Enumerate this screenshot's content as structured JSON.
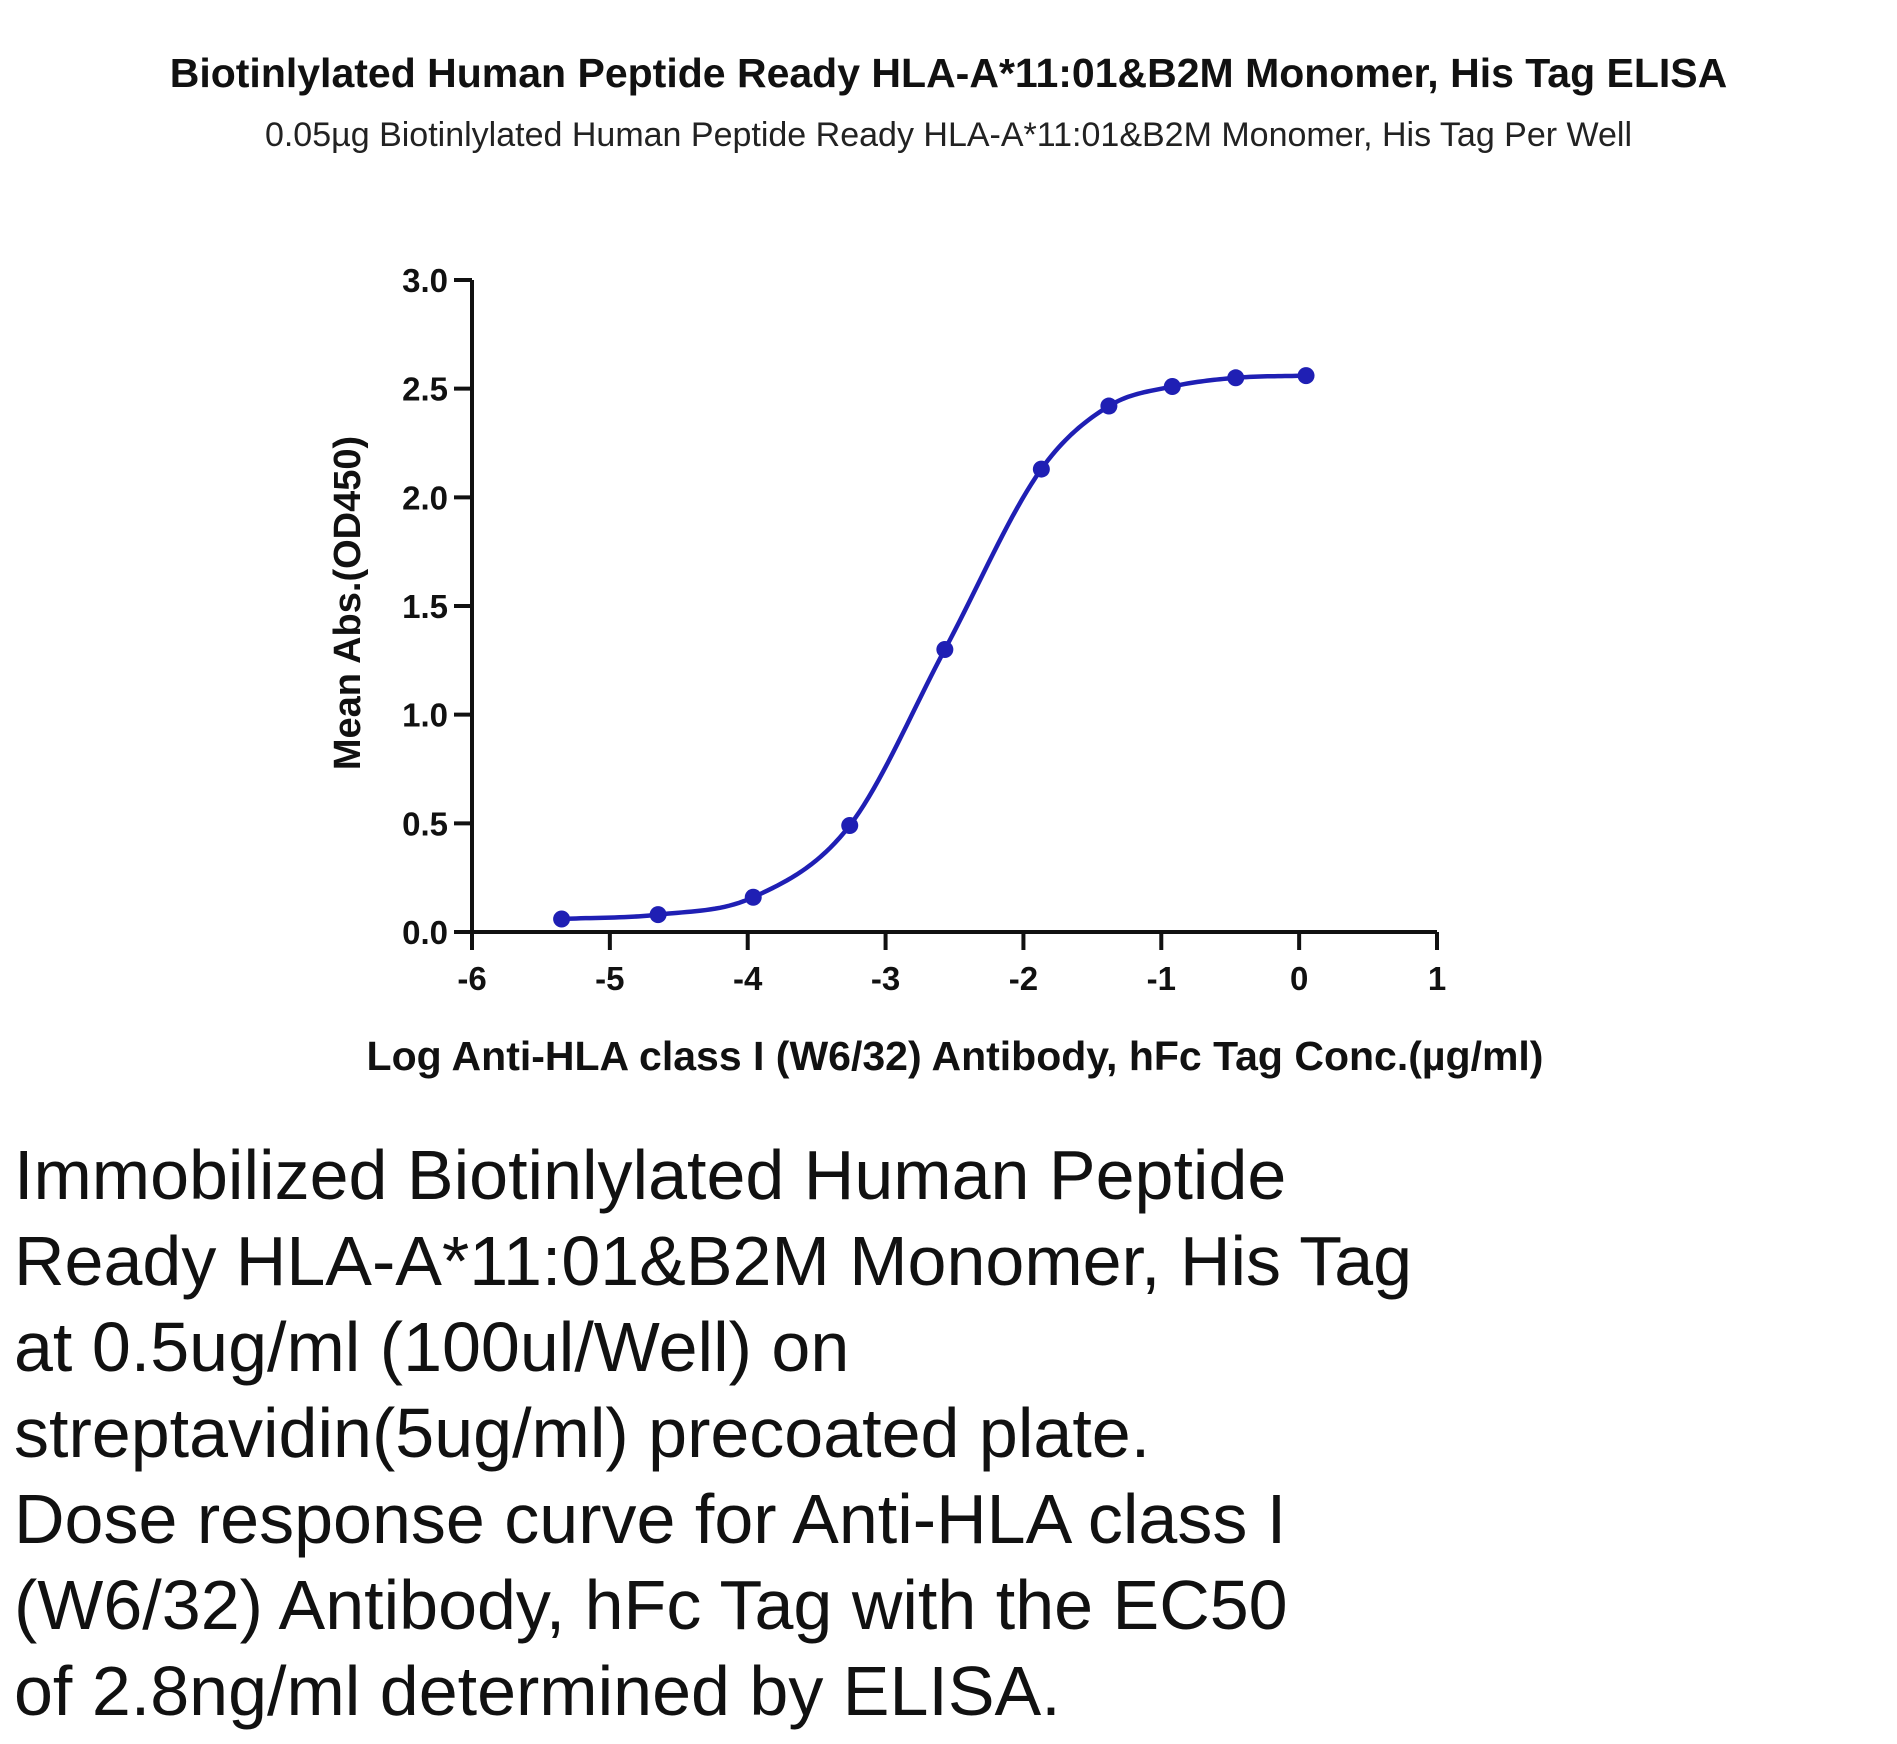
{
  "title": "Biotinlylated Human Peptide Ready HLA-A*11:01&B2M Monomer, His Tag ELISA",
  "subtitle": "0.05µg Biotinlylated Human Peptide Ready HLA-A*11:01&B2M Monomer, His Tag Per Well",
  "chart_data": {
    "type": "scatter",
    "xlabel": "Log Anti-HLA class I (W6/32) Antibody, hFc Tag Conc.(µg/ml)",
    "ylabel": "Mean Abs.(OD450)",
    "xlim": [
      -6,
      1
    ],
    "ylim": [
      0,
      3.0
    ],
    "x_ticks": [
      "-6",
      "-5",
      "-4",
      "-3",
      "-2",
      "-1",
      "0",
      "1"
    ],
    "y_ticks": [
      "0.0",
      "0.5",
      "1.0",
      "1.5",
      "2.0",
      "2.5",
      "3.0"
    ],
    "grid": false,
    "series": [
      {
        "color": "#1f1fb4",
        "x": [
          -5.35,
          -4.65,
          -3.96,
          -3.26,
          -2.57,
          -1.87,
          -1.38,
          -0.92,
          -0.46,
          0.05
        ],
        "y": [
          0.06,
          0.08,
          0.16,
          0.49,
          1.3,
          2.13,
          2.42,
          2.51,
          2.55,
          2.56
        ],
        "fit_curve": "four-parameter logistic"
      }
    ]
  },
  "caption_lines": [
    "Immobilized Biotinlylated Human Peptide",
    "Ready HLA-A*11:01&B2M Monomer, His Tag",
    "at 0.5ug/ml (100ul/Well) on",
    "streptavidin(5ug/ml) precoated plate.",
    "Dose response curve for Anti-HLA class I",
    "(W6/32) Antibody, hFc Tag with the EC50",
    "of 2.8ng/ml determined by ELISA."
  ]
}
